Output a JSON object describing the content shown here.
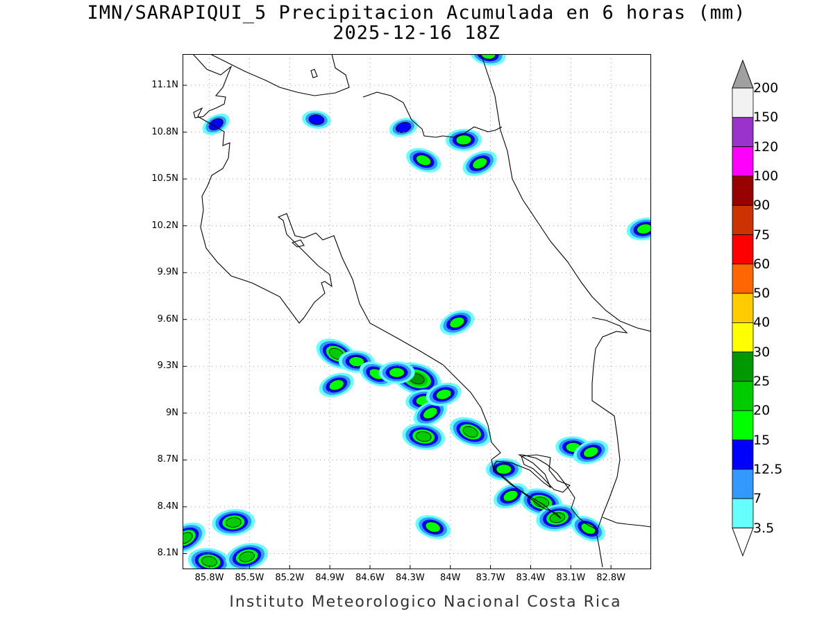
{
  "title": {
    "line1": "IMN/SARAPIQUI_5 Precipitacion Acumulada en 6 horas (mm)",
    "line2": "2025-12-16 18Z"
  },
  "credit": "Instituto Meteorologico Nacional Costa Rica",
  "map": {
    "lat_range": [
      8.0,
      11.3
    ],
    "lon_range": [
      -86.0,
      -82.5
    ],
    "lat_ticks": [
      {
        "value": 11.1,
        "label": "11.1N"
      },
      {
        "value": 10.8,
        "label": "10.8N"
      },
      {
        "value": 10.5,
        "label": "10.5N"
      },
      {
        "value": 10.2,
        "label": "10.2N"
      },
      {
        "value": 9.9,
        "label": "9.9N"
      },
      {
        "value": 9.6,
        "label": "9.6N"
      },
      {
        "value": 9.3,
        "label": "9.3N"
      },
      {
        "value": 9.0,
        "label": "9N"
      },
      {
        "value": 8.7,
        "label": "8.7N"
      },
      {
        "value": 8.4,
        "label": "8.4N"
      },
      {
        "value": 8.1,
        "label": "8.1N"
      }
    ],
    "lon_ticks": [
      {
        "value": -85.8,
        "label": "85.8W"
      },
      {
        "value": -85.5,
        "label": "85.5W"
      },
      {
        "value": -85.2,
        "label": "85.2W"
      },
      {
        "value": -84.9,
        "label": "84.9W"
      },
      {
        "value": -84.6,
        "label": "84.6W"
      },
      {
        "value": -84.3,
        "label": "84.3W"
      },
      {
        "value": -84.0,
        "label": "84W"
      },
      {
        "value": -83.7,
        "label": "83.7W"
      },
      {
        "value": -83.4,
        "label": "83.4W"
      },
      {
        "value": -83.1,
        "label": "83.1W"
      },
      {
        "value": -82.8,
        "label": "82.8W"
      }
    ],
    "gridlines": true
  },
  "colorbar": {
    "levels": [
      {
        "label": "200",
        "color": "#a0a0a0"
      },
      {
        "label": "150",
        "color": "#f2f2f2"
      },
      {
        "label": "120",
        "color": "#9933cc"
      },
      {
        "label": "100",
        "color": "#ff00ff"
      },
      {
        "label": "90",
        "color": "#990000"
      },
      {
        "label": "75",
        "color": "#cc3300"
      },
      {
        "label": "60",
        "color": "#ff0000"
      },
      {
        "label": "50",
        "color": "#ff6600"
      },
      {
        "label": "40",
        "color": "#ffcc00"
      },
      {
        "label": "30",
        "color": "#ffff00"
      },
      {
        "label": "25",
        "color": "#009900"
      },
      {
        "label": "20",
        "color": "#00cc00"
      },
      {
        "label": "15",
        "color": "#00ff00"
      },
      {
        "label": "12.5",
        "color": "#0000ff"
      },
      {
        "label": "7",
        "color": "#3399ff"
      },
      {
        "label": "3.5",
        "color": "#66ffff"
      }
    ],
    "below_color": "#ffffff"
  },
  "precip_cells": [
    {
      "lon": -85.75,
      "lat": 10.85,
      "level": "12.5"
    },
    {
      "lon": -85.0,
      "lat": 10.88,
      "level": "12.5"
    },
    {
      "lon": -84.35,
      "lat": 10.83,
      "level": "12.5"
    },
    {
      "lon": -84.2,
      "lat": 10.62,
      "level": "15"
    },
    {
      "lon": -83.9,
      "lat": 10.75,
      "level": "15"
    },
    {
      "lon": -83.78,
      "lat": 10.6,
      "level": "15"
    },
    {
      "lon": -83.72,
      "lat": 11.3,
      "level": "15"
    },
    {
      "lon": -82.55,
      "lat": 10.18,
      "level": "15"
    },
    {
      "lon": -84.85,
      "lat": 9.38,
      "level": "20"
    },
    {
      "lon": -84.7,
      "lat": 9.33,
      "level": "15"
    },
    {
      "lon": -84.85,
      "lat": 9.18,
      "level": "15"
    },
    {
      "lon": -84.25,
      "lat": 9.22,
      "level": "25"
    },
    {
      "lon": -84.2,
      "lat": 9.08,
      "level": "15"
    },
    {
      "lon": -84.15,
      "lat": 9.0,
      "level": "15"
    },
    {
      "lon": -84.2,
      "lat": 8.85,
      "level": "20"
    },
    {
      "lon": -84.05,
      "lat": 9.12,
      "level": "15"
    },
    {
      "lon": -83.85,
      "lat": 8.88,
      "level": "20"
    },
    {
      "lon": -83.6,
      "lat": 8.64,
      "level": "15"
    },
    {
      "lon": -83.55,
      "lat": 8.47,
      "level": "15"
    },
    {
      "lon": -83.32,
      "lat": 8.43,
      "level": "20"
    },
    {
      "lon": -83.2,
      "lat": 8.33,
      "level": "20"
    },
    {
      "lon": -82.97,
      "lat": 8.26,
      "level": "15"
    },
    {
      "lon": -83.08,
      "lat": 8.78,
      "level": "15"
    },
    {
      "lon": -82.95,
      "lat": 8.75,
      "level": "15"
    },
    {
      "lon": -84.13,
      "lat": 8.27,
      "level": "15"
    },
    {
      "lon": -85.62,
      "lat": 8.3,
      "level": "20"
    },
    {
      "lon": -85.98,
      "lat": 8.2,
      "level": "20"
    },
    {
      "lon": -85.8,
      "lat": 8.05,
      "level": "20"
    },
    {
      "lon": -85.52,
      "lat": 8.08,
      "level": "20"
    },
    {
      "lon": -84.55,
      "lat": 9.25,
      "level": "15"
    },
    {
      "lon": -84.4,
      "lat": 9.26,
      "level": "15"
    },
    {
      "lon": -83.95,
      "lat": 9.58,
      "level": "15"
    }
  ]
}
